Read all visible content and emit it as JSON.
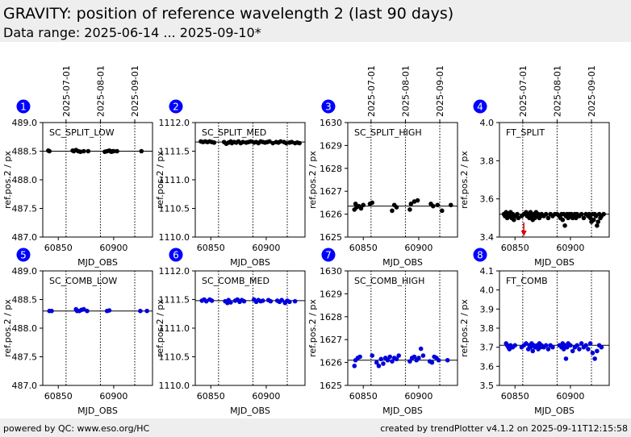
{
  "page": {
    "title": "GRAVITY: position of reference wavelength 2 (last 90 days)",
    "subtitle": "Data range: 2025-06-14 ... 2025-09-10*"
  },
  "footer": {
    "left": "powered by QC: www.eso.org/HC",
    "right": "created by trendPlotter v4.1.2 on 2025-09-11T12:15:58"
  },
  "colors": {
    "black_series": "#000000",
    "blue_series": "#0000dd",
    "badge": "#0000ff",
    "outlier_arrow": "#dd0000",
    "header_bg": "#eeeeee"
  },
  "chart_data": [
    {
      "type": "scatter",
      "badge": "1",
      "label": "SC_SPLIT_LOW",
      "xlabel": "MJD_OBS",
      "ylabel": "ref.pos.2 / px",
      "xlim": [
        60836,
        60935
      ],
      "ylim": [
        487.0,
        489.0
      ],
      "yticks": [
        487.0,
        487.5,
        488.0,
        488.5,
        489.0
      ],
      "ydecimals": 1,
      "xticks": [
        60850,
        60900
      ],
      "date_ticks": true,
      "reference_line": 488.5,
      "color": "#000000",
      "series": [
        {
          "x": [
            60841,
            60842,
            60863,
            60864,
            60866,
            60868,
            60870,
            60873,
            60877,
            60892,
            60894,
            60896,
            60897,
            60898,
            60899,
            60900,
            60903,
            60925
          ],
          "y": [
            488.51,
            488.5,
            488.51,
            488.5,
            488.52,
            488.5,
            488.49,
            488.5,
            488.5,
            488.49,
            488.5,
            488.51,
            488.5,
            488.49,
            488.5,
            488.5,
            488.5,
            488.5
          ]
        }
      ]
    },
    {
      "type": "scatter",
      "badge": "2",
      "label": "SC_SPLIT_MED",
      "xlabel": "MJD_OBS",
      "ylabel": "ref.pos.2 / px",
      "xlim": [
        60836,
        60935
      ],
      "ylim": [
        1110.0,
        1112.0
      ],
      "yticks": [
        1110.0,
        1110.5,
        1111.0,
        1111.5,
        1112.0
      ],
      "ydecimals": 1,
      "xticks": [
        60850,
        60900
      ],
      "date_ticks": false,
      "reference_line": 1111.66,
      "color": "#000000",
      "series": [
        {
          "x": [
            60841,
            60843,
            60845,
            60847,
            60849,
            60851,
            60853,
            60862,
            60864,
            60866,
            60868,
            60869,
            60871,
            60873,
            60875,
            60877,
            60879,
            60882,
            60884,
            60886,
            60889,
            60891,
            60893,
            60895,
            60897,
            60899,
            60901,
            60903,
            60906,
            60909,
            60911,
            60913,
            60916,
            60918,
            60921,
            60923,
            60926,
            60928,
            60930
          ],
          "y": [
            1111.67,
            1111.66,
            1111.67,
            1111.66,
            1111.67,
            1111.66,
            1111.65,
            1111.66,
            1111.63,
            1111.65,
            1111.67,
            1111.64,
            1111.66,
            1111.65,
            1111.67,
            1111.64,
            1111.66,
            1111.65,
            1111.66,
            1111.67,
            1111.65,
            1111.66,
            1111.64,
            1111.67,
            1111.66,
            1111.65,
            1111.66,
            1111.67,
            1111.64,
            1111.66,
            1111.65,
            1111.67,
            1111.66,
            1111.64,
            1111.65,
            1111.66,
            1111.64,
            1111.65,
            1111.64
          ]
        }
      ]
    },
    {
      "type": "scatter",
      "badge": "3",
      "label": "SC_SPLIT_HIGH",
      "xlabel": "MJD_OBS",
      "ylabel": "ref.pos.2 / px",
      "xlim": [
        60836,
        60935
      ],
      "ylim": [
        1625,
        1630
      ],
      "yticks": [
        1625,
        1626,
        1627,
        1628,
        1629,
        1630
      ],
      "ydecimals": 0,
      "xticks": [
        60850,
        60900
      ],
      "date_ticks": true,
      "reference_line": 1626.35,
      "color": "#000000",
      "series": [
        {
          "x": [
            60842,
            60843,
            60844,
            60846,
            60848,
            60850,
            60856,
            60858,
            60876,
            60878,
            60880,
            60892,
            60893,
            60896,
            60899,
            60911,
            60913,
            60917,
            60921,
            60929
          ],
          "y": [
            1626.2,
            1626.45,
            1626.3,
            1626.35,
            1626.25,
            1626.4,
            1626.45,
            1626.5,
            1626.15,
            1626.4,
            1626.3,
            1626.2,
            1626.45,
            1626.55,
            1626.6,
            1626.45,
            1626.35,
            1626.4,
            1626.15,
            1626.4
          ]
        }
      ]
    },
    {
      "type": "scatter",
      "badge": "4",
      "label": "FT_SPLIT",
      "xlabel": "MJD_OBS",
      "ylabel": "ref.pos.2 / px",
      "xlim": [
        60836,
        60935
      ],
      "ylim": [
        3.4,
        4.0
      ],
      "yticks": [
        3.4,
        3.6,
        3.8,
        4.0
      ],
      "ydecimals": 1,
      "xticks": [
        60850,
        60900
      ],
      "date_ticks": true,
      "reference_line": 3.52,
      "color": "#000000",
      "outlier_arrow_x": 60858,
      "series": [
        {
          "x": [
            60840,
            60841,
            60842,
            60843,
            60844,
            60845,
            60846,
            60847,
            60848,
            60849,
            60850,
            60852,
            60853,
            60856,
            60858,
            60860,
            60861,
            60862,
            60863,
            60864,
            60865,
            60866,
            60867,
            60868,
            60869,
            60870,
            60871,
            60872,
            60873,
            60874,
            60876,
            60878,
            60880,
            60882,
            60884,
            60886,
            60888,
            60890,
            60891,
            60892,
            60893,
            60894,
            60895,
            60896,
            60897,
            60898,
            60899,
            60900,
            60901,
            60902,
            60903,
            60904,
            60905,
            60906,
            60908,
            60910,
            60912,
            60914,
            60916,
            60917,
            60918,
            60919,
            60920,
            60921,
            60922,
            60923,
            60924,
            60925,
            60926,
            60927,
            60928,
            60930
          ],
          "y": [
            3.52,
            3.51,
            3.53,
            3.5,
            3.52,
            3.51,
            3.53,
            3.5,
            3.52,
            3.49,
            3.51,
            3.52,
            3.5,
            3.51,
            3.52,
            3.53,
            3.51,
            3.52,
            3.5,
            3.53,
            3.51,
            3.49,
            3.52,
            3.5,
            3.53,
            3.51,
            3.52,
            3.5,
            3.51,
            3.52,
            3.51,
            3.52,
            3.5,
            3.52,
            3.51,
            3.52,
            3.52,
            3.51,
            3.5,
            3.52,
            3.49,
            3.52,
            3.46,
            3.51,
            3.52,
            3.5,
            3.52,
            3.51,
            3.52,
            3.5,
            3.51,
            3.52,
            3.5,
            3.52,
            3.51,
            3.52,
            3.5,
            3.52,
            3.51,
            3.52,
            3.5,
            3.48,
            3.52,
            3.49,
            3.52,
            3.51,
            3.46,
            3.48,
            3.52,
            3.5,
            3.51,
            3.52
          ]
        }
      ]
    },
    {
      "type": "scatter",
      "badge": "5",
      "label": "SC_COMB_LOW",
      "xlabel": "MJD_OBS",
      "ylabel": "ref.pos.2 / px",
      "xlim": [
        60836,
        60935
      ],
      "ylim": [
        487.0,
        489.0
      ],
      "yticks": [
        487.0,
        487.5,
        488.0,
        488.5,
        489.0
      ],
      "ydecimals": 1,
      "xticks": [
        60850,
        60900
      ],
      "date_ticks": false,
      "reference_line": 488.3,
      "color": "#0000dd",
      "series": [
        {
          "x": [
            60842,
            60844,
            60866,
            60867,
            60869,
            60871,
            60873,
            60876,
            60894,
            60896,
            60924,
            60930
          ],
          "y": [
            488.3,
            488.3,
            488.33,
            488.3,
            488.3,
            488.32,
            488.33,
            488.3,
            488.3,
            488.31,
            488.3,
            488.3
          ]
        }
      ]
    },
    {
      "type": "scatter",
      "badge": "6",
      "label": "SC_COMB_MED",
      "xlabel": "MJD_OBS",
      "ylabel": "ref.pos.2 / px",
      "xlim": [
        60836,
        60935
      ],
      "ylim": [
        1110.0,
        1112.0
      ],
      "yticks": [
        1110.0,
        1110.5,
        1111.0,
        1111.5,
        1112.0
      ],
      "ydecimals": 1,
      "xticks": [
        60850,
        60900
      ],
      "date_ticks": false,
      "reference_line": 1111.48,
      "color": "#0000dd",
      "series": [
        {
          "x": [
            60842,
            60844,
            60846,
            60849,
            60851,
            60863,
            60865,
            60866,
            60868,
            60872,
            60874,
            60876,
            60878,
            60880,
            60889,
            60891,
            60893,
            60895,
            60897,
            60902,
            60904,
            60910,
            60912,
            60914,
            60917,
            60919,
            60921,
            60926
          ],
          "y": [
            1111.48,
            1111.5,
            1111.47,
            1111.5,
            1111.48,
            1111.47,
            1111.44,
            1111.49,
            1111.45,
            1111.48,
            1111.5,
            1111.46,
            1111.49,
            1111.47,
            1111.5,
            1111.46,
            1111.49,
            1111.47,
            1111.48,
            1111.49,
            1111.47,
            1111.48,
            1111.46,
            1111.49,
            1111.44,
            1111.48,
            1111.46,
            1111.47
          ]
        }
      ]
    },
    {
      "type": "scatter",
      "badge": "7",
      "label": "SC_COMB_HIGH",
      "xlabel": "MJD_OBS",
      "ylabel": "ref.pos.2 / px",
      "xlim": [
        60836,
        60935
      ],
      "ylim": [
        1625,
        1630
      ],
      "yticks": [
        1625,
        1626,
        1627,
        1628,
        1629,
        1630
      ],
      "ydecimals": 0,
      "xticks": [
        60850,
        60900
      ],
      "date_ticks": false,
      "reference_line": 1626.1,
      "color": "#0000dd",
      "series": [
        {
          "x": [
            60842,
            60843,
            60845,
            60847,
            60858,
            60862,
            60864,
            60866,
            60868,
            60870,
            60872,
            60874,
            60876,
            60878,
            60880,
            60882,
            60892,
            60894,
            60896,
            60898,
            60900,
            60902,
            60904,
            60910,
            60912,
            60914,
            60916,
            60918,
            60926
          ],
          "y": [
            1625.85,
            1626.1,
            1626.2,
            1626.25,
            1626.3,
            1626.0,
            1625.85,
            1626.15,
            1625.95,
            1626.2,
            1626.1,
            1626.25,
            1626.05,
            1626.2,
            1626.15,
            1626.3,
            1626.05,
            1626.2,
            1626.25,
            1626.1,
            1626.2,
            1626.6,
            1626.3,
            1626.05,
            1626.0,
            1626.25,
            1626.2,
            1626.1,
            1626.1
          ]
        }
      ]
    },
    {
      "type": "scatter",
      "badge": "8",
      "label": "FT_COMB",
      "xlabel": "MJD_OBS",
      "ylabel": "ref.pos.2 / px",
      "xlim": [
        60836,
        60935
      ],
      "ylim": [
        3.5,
        4.1
      ],
      "yticks": [
        3.5,
        3.6,
        3.7,
        3.8,
        3.9,
        4.0,
        4.1
      ],
      "ydecimals": 1,
      "xticks": [
        60850,
        60900
      ],
      "date_ticks": false,
      "reference_line": 3.71,
      "color": "#0000dd",
      "series": [
        {
          "x": [
            60842,
            60843,
            60844,
            60845,
            60846,
            60848,
            60850,
            60856,
            60858,
            60860,
            60862,
            60863,
            60864,
            60865,
            60866,
            60867,
            60868,
            60870,
            60871,
            60872,
            60873,
            60874,
            60876,
            60878,
            60880,
            60882,
            60884,
            60890,
            60892,
            60893,
            60894,
            60895,
            60896,
            60897,
            60898,
            60900,
            60902,
            60904,
            60906,
            60908,
            60910,
            60912,
            60914,
            60916,
            60918,
            60920,
            60922,
            60924,
            60926,
            60928
          ],
          "y": [
            3.72,
            3.71,
            3.7,
            3.69,
            3.71,
            3.7,
            3.71,
            3.7,
            3.71,
            3.72,
            3.69,
            3.71,
            3.7,
            3.72,
            3.68,
            3.71,
            3.7,
            3.71,
            3.69,
            3.72,
            3.7,
            3.71,
            3.7,
            3.71,
            3.69,
            3.71,
            3.7,
            3.71,
            3.7,
            3.72,
            3.69,
            3.71,
            3.64,
            3.7,
            3.72,
            3.71,
            3.68,
            3.7,
            3.71,
            3.69,
            3.72,
            3.7,
            3.71,
            3.69,
            3.72,
            3.67,
            3.64,
            3.68,
            3.71,
            3.7
          ]
        }
      ]
    }
  ],
  "date_ticks": [
    {
      "label": "2025-07-01",
      "x": 60857
    },
    {
      "label": "2025-08-01",
      "x": 60888
    },
    {
      "label": "2025-09-01",
      "x": 60919
    }
  ]
}
